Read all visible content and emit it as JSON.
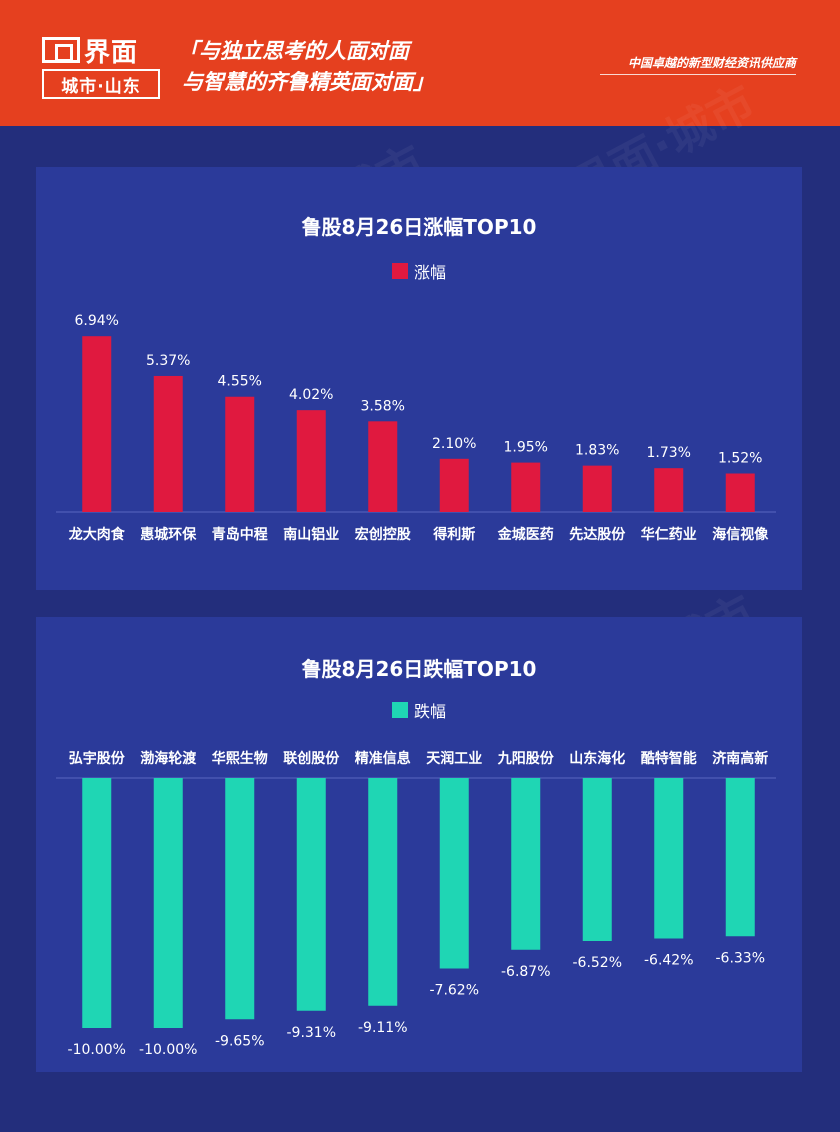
{
  "header": {
    "logo_name": "界面",
    "logo_sub": "城市·山东",
    "slogan_line1": "「与独立思考的人面对面",
    "slogan_line2": "与智慧的齐鲁精英面对面」",
    "tagline": "中国卓越的新型财经资讯供应商",
    "header_color": "#e5401f"
  },
  "chart_data": [
    {
      "type": "bar",
      "title": "鲁股8月26日涨幅TOP10",
      "legend": "涨幅",
      "color": "#e0193f",
      "categories": [
        "龙大肉食",
        "惠城环保",
        "青岛中程",
        "南山铝业",
        "宏创控股",
        "得利斯",
        "金城医药",
        "先达股份",
        "华仁药业",
        "海信视像"
      ],
      "values": [
        6.94,
        5.37,
        4.55,
        4.02,
        3.58,
        2.1,
        1.95,
        1.83,
        1.73,
        1.52
      ],
      "labels": [
        "6.94%",
        "5.37%",
        "4.55%",
        "4.02%",
        "3.58%",
        "2.10%",
        "1.95%",
        "1.83%",
        "1.73%",
        "1.52%"
      ],
      "ylim": [
        0,
        7.5
      ]
    },
    {
      "type": "bar",
      "title": "鲁股8月26日跌幅TOP10",
      "legend": "跌幅",
      "color": "#1fd6b4",
      "categories": [
        "弘宇股份",
        "渤海轮渡",
        "华熙生物",
        "联创股份",
        "精准信息",
        "天润工业",
        "九阳股份",
        "山东海化",
        "酷特智能",
        "济南高新"
      ],
      "values": [
        -10.0,
        -10.0,
        -9.65,
        -9.31,
        -9.11,
        -7.62,
        -6.87,
        -6.52,
        -6.42,
        -6.33
      ],
      "labels": [
        "-10.00%",
        "-10.00%",
        "-9.65%",
        "-9.31%",
        "-9.11%",
        "-7.62%",
        "-6.87%",
        "-6.52%",
        "-6.42%",
        "-6.33%"
      ],
      "ylim": [
        -10,
        0
      ]
    }
  ]
}
